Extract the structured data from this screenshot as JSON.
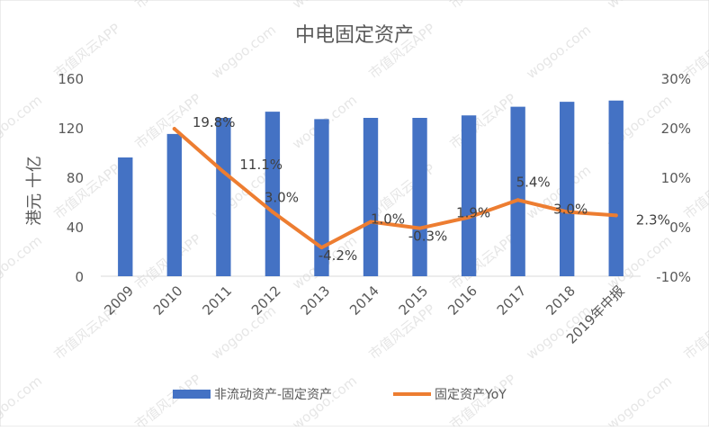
{
  "chart_data": {
    "type": "bar+line",
    "title": "中电固定资产",
    "ylabel_left": "港元 十亿",
    "ylim_left": [
      0,
      160
    ],
    "yticks_left": [
      "0",
      "40",
      "80",
      "120",
      "160"
    ],
    "ylim_right": [
      -10,
      30
    ],
    "yticks_right": [
      "-10%",
      "0%",
      "10%",
      "20%",
      "30%"
    ],
    "categories": [
      "2009",
      "2010",
      "2011",
      "2012",
      "2013",
      "2014",
      "2015",
      "2016",
      "2017",
      "2018",
      "2019年中报"
    ],
    "series": [
      {
        "name": "非流动资产-固定资产",
        "type": "bar",
        "axis": "left",
        "color": "#4472C4",
        "values": [
          96,
          115,
          128,
          133,
          127,
          128,
          128,
          130,
          137,
          141,
          142
        ]
      },
      {
        "name": "固定资产YoY",
        "type": "line",
        "axis": "right",
        "color": "#ED7D31",
        "values": [
          null,
          19.8,
          11.1,
          3.0,
          -4.2,
          1.0,
          -0.3,
          1.9,
          5.4,
          3.0,
          2.3
        ],
        "labels": [
          "",
          "19.8%",
          "11.1%",
          "3.0%",
          "-4.2%",
          "1.0%",
          "-0.3%",
          "1.9%",
          "5.4%",
          "3.0%",
          "2.3%"
        ]
      }
    ],
    "legend": "bottom",
    "grid": false
  },
  "watermark": {
    "texts": [
      "wogoo.com",
      "市值风云APP"
    ]
  }
}
